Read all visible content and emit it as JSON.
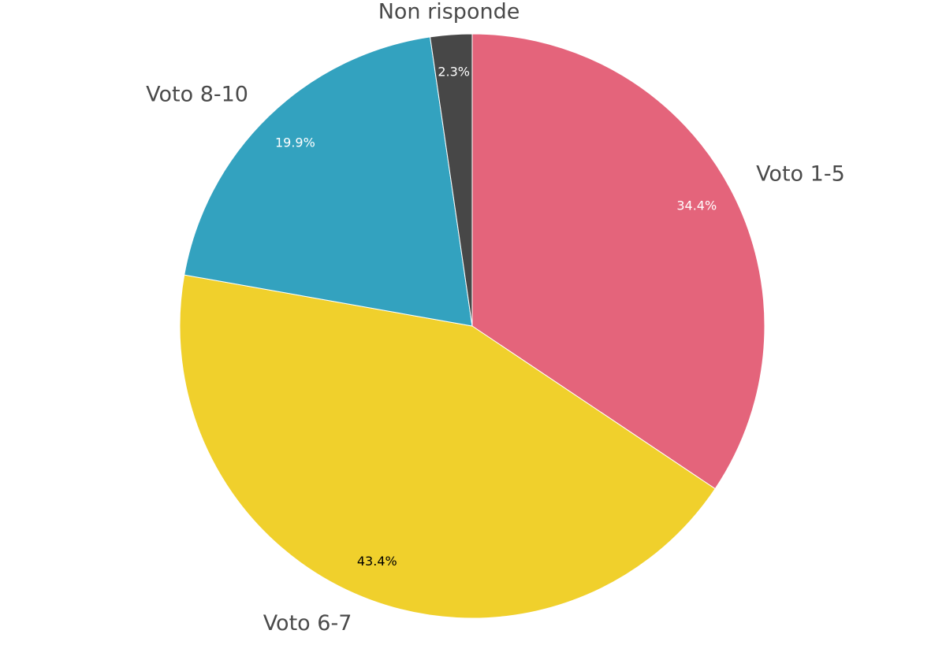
{
  "chart_data": {
    "type": "pie",
    "categories": [
      "Voto 1-5",
      "Voto 6-7",
      "Voto 8-10",
      "Non risponde"
    ],
    "values": [
      34.4,
      43.4,
      19.9,
      2.3
    ],
    "value_labels": [
      "34.4%",
      "43.4%",
      "19.9%",
      "2.3%"
    ],
    "colors": [
      "#e4647b",
      "#f0d02c",
      "#33a2bf",
      "#474747"
    ]
  }
}
